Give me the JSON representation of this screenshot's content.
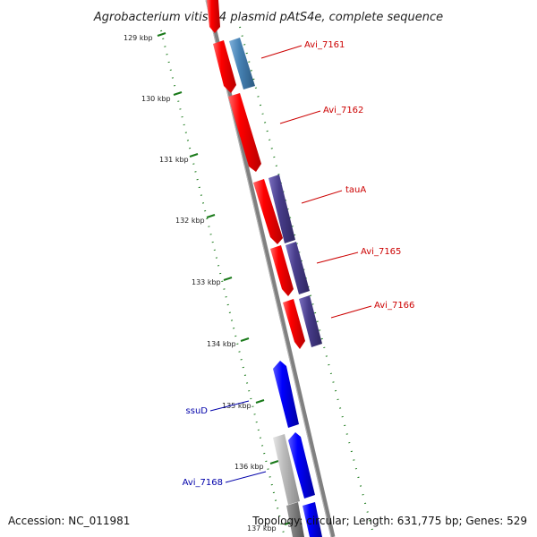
{
  "title": "Agrobacterium vitis S4 plasmid pAtS4e, complete sequence",
  "ticks": [
    "129 kbp",
    "130 kbp",
    "131 kbp",
    "132 kbp",
    "133 kbp",
    "134 kbp",
    "135 kbp",
    "136 kbp",
    "137 kbp"
  ],
  "genes": [
    {
      "label": "Avi_7161",
      "color": "#cc0000"
    },
    {
      "label": "Avi_7162",
      "color": "#cc0000"
    },
    {
      "label": "tauA",
      "color": "#cc0000"
    },
    {
      "label": "Avi_7165",
      "color": "#cc0000"
    },
    {
      "label": "Avi_7166",
      "color": "#cc0000"
    },
    {
      "label": "ssuD",
      "color": "#0000aa"
    },
    {
      "label": "Avi_7168",
      "color": "#0000aa"
    }
  ],
  "colors": {
    "cds_red": "#ff0000",
    "cds_blue": "#0000ff",
    "cds_steel": "#4682b4",
    "cds_purple": "#483d8b",
    "cds_gray": "#bbbbbb",
    "backbone": "#808080",
    "ticks": "#1a7a1a"
  },
  "footer": {
    "accession": "Accession: NC_011981",
    "stats": "Topology: circular; Length: 631,775 bp; Genes: 529"
  }
}
